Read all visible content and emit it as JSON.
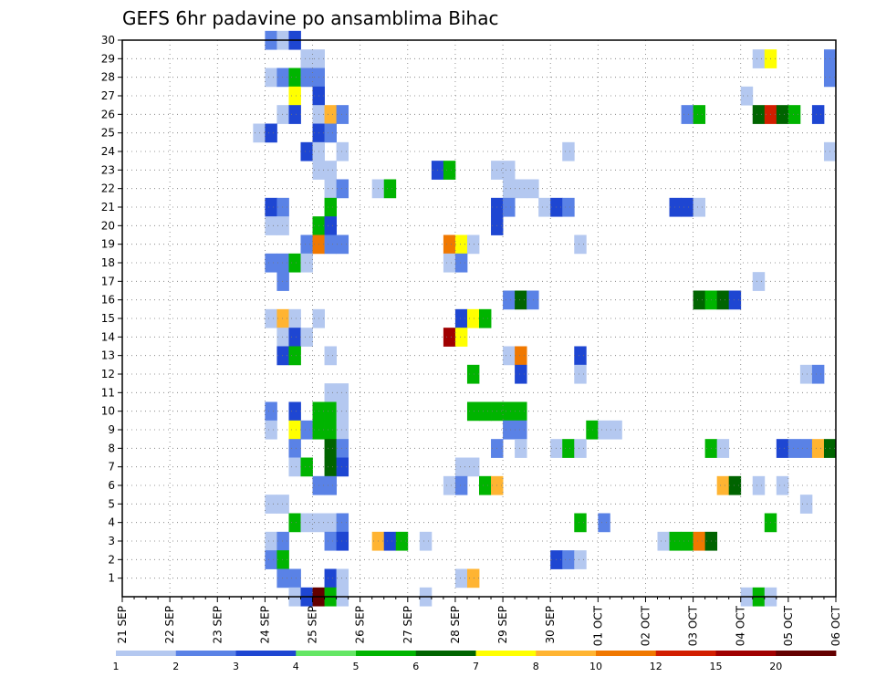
{
  "chart_data": {
    "type": "heatmap",
    "title": "GEFS 6hr padavine po ansamblima Bihac",
    "xlabel": "",
    "ylabel": "",
    "y_ticks": [
      1,
      2,
      3,
      4,
      5,
      6,
      7,
      8,
      9,
      10,
      11,
      12,
      13,
      14,
      15,
      16,
      17,
      18,
      19,
      20,
      21,
      22,
      23,
      24,
      25,
      26,
      27,
      28,
      29,
      30
    ],
    "ylim": [
      0,
      30
    ],
    "x_ticks": [
      "21 SEP",
      "22 SEP",
      "23 SEP",
      "24 SEP",
      "25 SEP",
      "26 SEP",
      "27 SEP",
      "28 SEP",
      "29 SEP",
      "30 SEP",
      "01 OCT",
      "02 OCT",
      "03 OCT",
      "04 OCT",
      "05 OCT",
      "06 OCT"
    ],
    "xlim_days": [
      0,
      15
    ],
    "grid": true,
    "legend": {
      "placement": "bottom",
      "boundaries": [
        "1",
        "2",
        "3",
        "4",
        "5",
        "6",
        "7",
        "8",
        "10",
        "12",
        "15",
        "20"
      ],
      "colors": [
        "#b4c8f0",
        "#5a82e6",
        "#1e46d2",
        "#64e664",
        "#00b400",
        "#006400",
        "#ffff00",
        "#ffb432",
        "#f07800",
        "#d21e00",
        "#a00000",
        "#640000"
      ]
    },
    "cells_note": "each cell: [x position in days after 21 SEP (6-hour steps), ensemble member y, color class index 0-11]",
    "cells": [
      [
        3.0,
        30,
        1
      ],
      [
        3.25,
        30,
        0
      ],
      [
        3.5,
        30,
        2
      ],
      [
        3.75,
        29,
        0
      ],
      [
        4.0,
        29,
        0
      ],
      [
        13.25,
        29,
        0
      ],
      [
        13.5,
        29,
        6
      ],
      [
        14.75,
        29,
        1
      ],
      [
        3.0,
        28,
        0
      ],
      [
        3.25,
        28,
        1
      ],
      [
        3.5,
        28,
        4
      ],
      [
        3.75,
        28,
        1
      ],
      [
        4.0,
        28,
        1
      ],
      [
        14.75,
        28,
        1
      ],
      [
        3.5,
        27,
        6
      ],
      [
        4.0,
        27,
        2
      ],
      [
        13.0,
        27,
        0
      ],
      [
        3.25,
        26,
        0
      ],
      [
        3.5,
        26,
        2
      ],
      [
        4.0,
        26,
        0
      ],
      [
        4.25,
        26,
        7
      ],
      [
        4.5,
        26,
        1
      ],
      [
        11.75,
        26,
        1
      ],
      [
        12.0,
        26,
        4
      ],
      [
        13.25,
        26,
        5
      ],
      [
        13.5,
        26,
        9
      ],
      [
        13.75,
        26,
        5
      ],
      [
        14.0,
        26,
        4
      ],
      [
        14.5,
        26,
        2
      ],
      [
        2.75,
        25,
        0
      ],
      [
        3.0,
        25,
        2
      ],
      [
        4.0,
        25,
        2
      ],
      [
        4.25,
        25,
        1
      ],
      [
        3.75,
        24,
        2
      ],
      [
        4.0,
        24,
        0
      ],
      [
        4.5,
        24,
        0
      ],
      [
        9.25,
        24,
        0
      ],
      [
        14.75,
        24,
        0
      ],
      [
        4.0,
        23,
        0
      ],
      [
        4.25,
        23,
        0
      ],
      [
        6.5,
        23,
        2
      ],
      [
        6.75,
        23,
        4
      ],
      [
        7.75,
        23,
        0
      ],
      [
        8.0,
        23,
        0
      ],
      [
        4.25,
        22,
        0
      ],
      [
        4.5,
        22,
        1
      ],
      [
        5.25,
        22,
        0
      ],
      [
        5.5,
        22,
        4
      ],
      [
        8.0,
        22,
        0
      ],
      [
        8.25,
        22,
        0
      ],
      [
        8.5,
        22,
        0
      ],
      [
        3.0,
        21,
        2
      ],
      [
        3.25,
        21,
        1
      ],
      [
        4.25,
        21,
        4
      ],
      [
        7.75,
        21,
        2
      ],
      [
        8.0,
        21,
        1
      ],
      [
        8.75,
        21,
        0
      ],
      [
        9.0,
        21,
        2
      ],
      [
        9.25,
        21,
        1
      ],
      [
        11.5,
        21,
        2
      ],
      [
        11.75,
        21,
        2
      ],
      [
        12.0,
        21,
        0
      ],
      [
        3.0,
        20,
        0
      ],
      [
        3.25,
        20,
        0
      ],
      [
        4.0,
        20,
        4
      ],
      [
        4.25,
        20,
        2
      ],
      [
        7.75,
        20,
        2
      ],
      [
        3.75,
        19,
        1
      ],
      [
        4.0,
        19,
        8
      ],
      [
        4.25,
        19,
        1
      ],
      [
        4.5,
        19,
        1
      ],
      [
        6.75,
        19,
        8
      ],
      [
        7.0,
        19,
        6
      ],
      [
        7.25,
        19,
        0
      ],
      [
        9.5,
        19,
        0
      ],
      [
        3.0,
        18,
        1
      ],
      [
        3.25,
        18,
        1
      ],
      [
        3.5,
        18,
        4
      ],
      [
        3.75,
        18,
        0
      ],
      [
        6.75,
        18,
        0
      ],
      [
        7.0,
        18,
        1
      ],
      [
        3.25,
        17,
        1
      ],
      [
        13.25,
        17,
        0
      ],
      [
        8.0,
        16,
        1
      ],
      [
        8.25,
        16,
        5
      ],
      [
        8.5,
        16,
        1
      ],
      [
        12.0,
        16,
        5
      ],
      [
        12.25,
        16,
        4
      ],
      [
        12.5,
        16,
        5
      ],
      [
        12.75,
        16,
        2
      ],
      [
        3.0,
        15,
        0
      ],
      [
        3.25,
        15,
        7
      ],
      [
        3.5,
        15,
        0
      ],
      [
        4.0,
        15,
        0
      ],
      [
        7.0,
        15,
        2
      ],
      [
        7.25,
        15,
        6
      ],
      [
        7.5,
        15,
        4
      ],
      [
        3.25,
        14,
        0
      ],
      [
        3.5,
        14,
        2
      ],
      [
        3.75,
        14,
        0
      ],
      [
        6.75,
        14,
        10
      ],
      [
        7.0,
        14,
        6
      ],
      [
        3.25,
        13,
        2
      ],
      [
        3.5,
        13,
        4
      ],
      [
        4.25,
        13,
        0
      ],
      [
        8.0,
        13,
        0
      ],
      [
        8.25,
        13,
        8
      ],
      [
        9.5,
        13,
        2
      ],
      [
        7.25,
        12,
        4
      ],
      [
        8.25,
        12,
        2
      ],
      [
        9.5,
        12,
        0
      ],
      [
        14.25,
        12,
        0
      ],
      [
        14.5,
        12,
        1
      ],
      [
        4.25,
        11,
        0
      ],
      [
        4.5,
        11,
        0
      ],
      [
        3.0,
        10,
        1
      ],
      [
        3.5,
        10,
        2
      ],
      [
        4.0,
        10,
        4
      ],
      [
        4.25,
        10,
        4
      ],
      [
        4.5,
        10,
        0
      ],
      [
        7.25,
        10,
        4
      ],
      [
        7.5,
        10,
        4
      ],
      [
        7.75,
        10,
        4
      ],
      [
        8.0,
        10,
        4
      ],
      [
        8.25,
        10,
        4
      ],
      [
        3.0,
        9,
        0
      ],
      [
        3.5,
        9,
        6
      ],
      [
        3.75,
        9,
        1
      ],
      [
        4.0,
        9,
        4
      ],
      [
        4.25,
        9,
        4
      ],
      [
        4.5,
        9,
        0
      ],
      [
        8.0,
        9,
        1
      ],
      [
        8.25,
        9,
        1
      ],
      [
        9.75,
        9,
        4
      ],
      [
        10.0,
        9,
        0
      ],
      [
        10.25,
        9,
        0
      ],
      [
        3.5,
        8,
        1
      ],
      [
        4.25,
        8,
        5
      ],
      [
        4.5,
        8,
        1
      ],
      [
        7.75,
        8,
        1
      ],
      [
        8.25,
        8,
        0
      ],
      [
        9.0,
        8,
        0
      ],
      [
        9.25,
        8,
        4
      ],
      [
        9.5,
        8,
        0
      ],
      [
        12.25,
        8,
        4
      ],
      [
        12.5,
        8,
        0
      ],
      [
        13.75,
        8,
        2
      ],
      [
        14.0,
        8,
        1
      ],
      [
        14.25,
        8,
        1
      ],
      [
        14.5,
        8,
        7
      ],
      [
        14.75,
        8,
        5
      ],
      [
        3.5,
        7,
        0
      ],
      [
        3.75,
        7,
        4
      ],
      [
        4.25,
        7,
        5
      ],
      [
        4.5,
        7,
        2
      ],
      [
        7.0,
        7,
        0
      ],
      [
        7.25,
        7,
        0
      ],
      [
        4.0,
        6,
        1
      ],
      [
        4.25,
        6,
        1
      ],
      [
        6.75,
        6,
        0
      ],
      [
        7.0,
        6,
        1
      ],
      [
        7.5,
        6,
        4
      ],
      [
        7.75,
        6,
        7
      ],
      [
        12.5,
        6,
        7
      ],
      [
        12.75,
        6,
        5
      ],
      [
        13.25,
        6,
        0
      ],
      [
        13.75,
        6,
        0
      ],
      [
        3.0,
        5,
        0
      ],
      [
        3.25,
        5,
        0
      ],
      [
        14.25,
        5,
        0
      ],
      [
        3.5,
        4,
        4
      ],
      [
        3.75,
        4,
        0
      ],
      [
        4.0,
        4,
        0
      ],
      [
        4.25,
        4,
        0
      ],
      [
        4.5,
        4,
        1
      ],
      [
        9.5,
        4,
        4
      ],
      [
        10.0,
        4,
        1
      ],
      [
        13.5,
        4,
        4
      ],
      [
        3.0,
        3,
        0
      ],
      [
        3.25,
        3,
        1
      ],
      [
        4.25,
        3,
        1
      ],
      [
        4.5,
        3,
        2
      ],
      [
        5.25,
        3,
        7
      ],
      [
        5.5,
        3,
        2
      ],
      [
        5.75,
        3,
        4
      ],
      [
        6.25,
        3,
        0
      ],
      [
        11.25,
        3,
        0
      ],
      [
        11.5,
        3,
        4
      ],
      [
        11.75,
        3,
        4
      ],
      [
        12.0,
        3,
        8
      ],
      [
        12.25,
        3,
        5
      ],
      [
        3.0,
        2,
        1
      ],
      [
        3.25,
        2,
        4
      ],
      [
        9.0,
        2,
        2
      ],
      [
        9.25,
        2,
        1
      ],
      [
        9.5,
        2,
        0
      ],
      [
        3.25,
        1,
        1
      ],
      [
        3.5,
        1,
        1
      ],
      [
        4.25,
        1,
        2
      ],
      [
        4.5,
        1,
        0
      ],
      [
        7.0,
        1,
        0
      ],
      [
        7.25,
        1,
        7
      ],
      [
        3.5,
        0,
        0
      ],
      [
        3.75,
        0,
        2
      ],
      [
        4.0,
        0,
        11
      ],
      [
        4.25,
        0,
        4
      ],
      [
        4.5,
        0,
        0
      ],
      [
        6.25,
        0,
        0
      ],
      [
        13.0,
        0,
        0
      ],
      [
        13.25,
        0,
        4
      ],
      [
        13.5,
        0,
        0
      ]
    ]
  }
}
